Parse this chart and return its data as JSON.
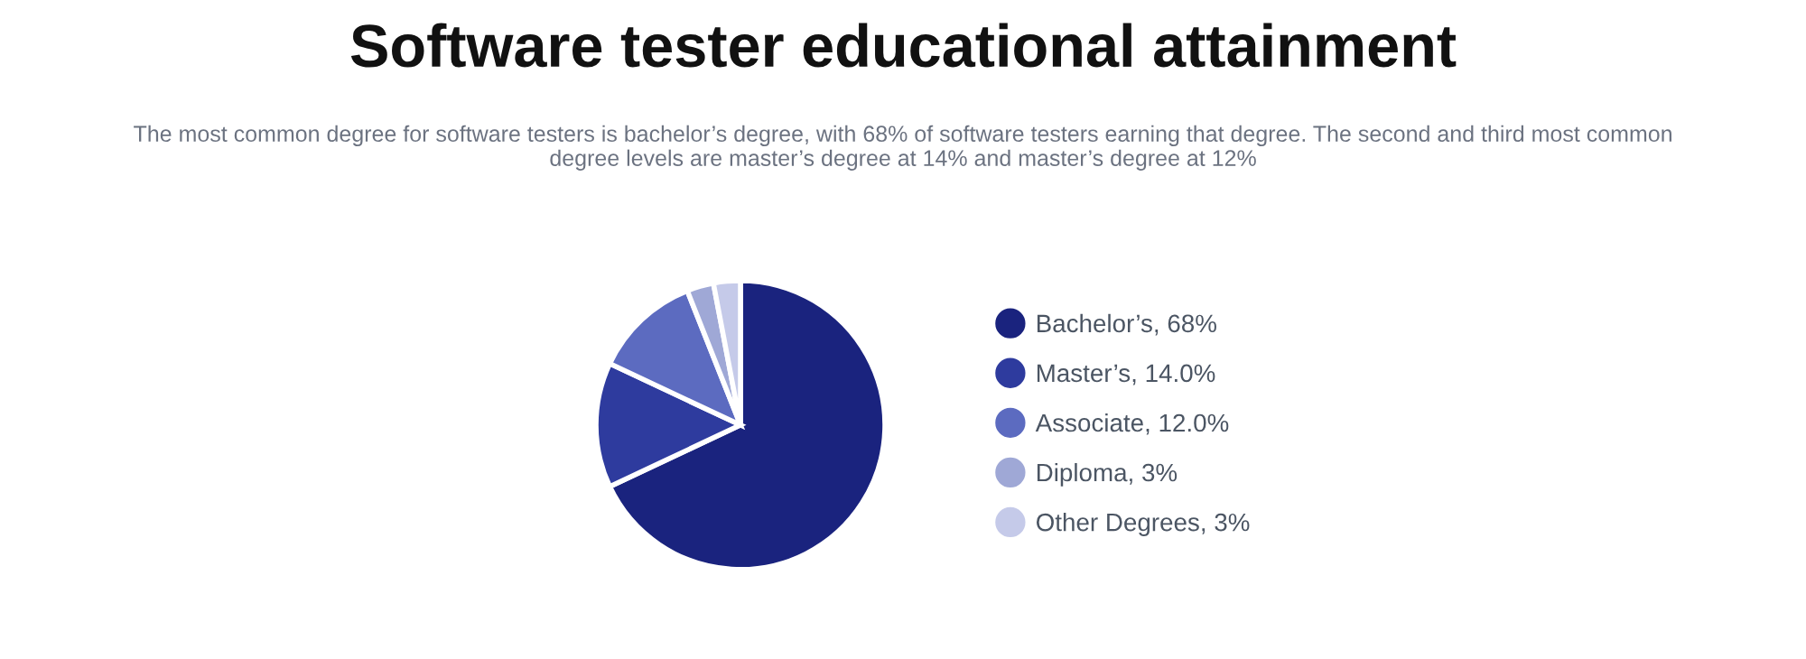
{
  "chart_data": {
    "type": "pie",
    "title": "Software tester educational attainment",
    "subtitle": "The most common degree for software testers is bachelor’s degree, with 68% of software testers earning that degree. The second and third most common degree levels are master’s degree at 14% and master’s degree at 12%",
    "categories": [
      "Bachelor’s, 68%",
      "Master’s, 14.0%",
      "Associate, 12.0%",
      "Diploma, 3%",
      "Other Degrees, 3%"
    ],
    "values": [
      68,
      14,
      12,
      3,
      3
    ],
    "colors": [
      "#1a237e",
      "#2e3b9e",
      "#5c6bc0",
      "#9fa8d6",
      "#c5cae9"
    ],
    "legend": "right"
  }
}
